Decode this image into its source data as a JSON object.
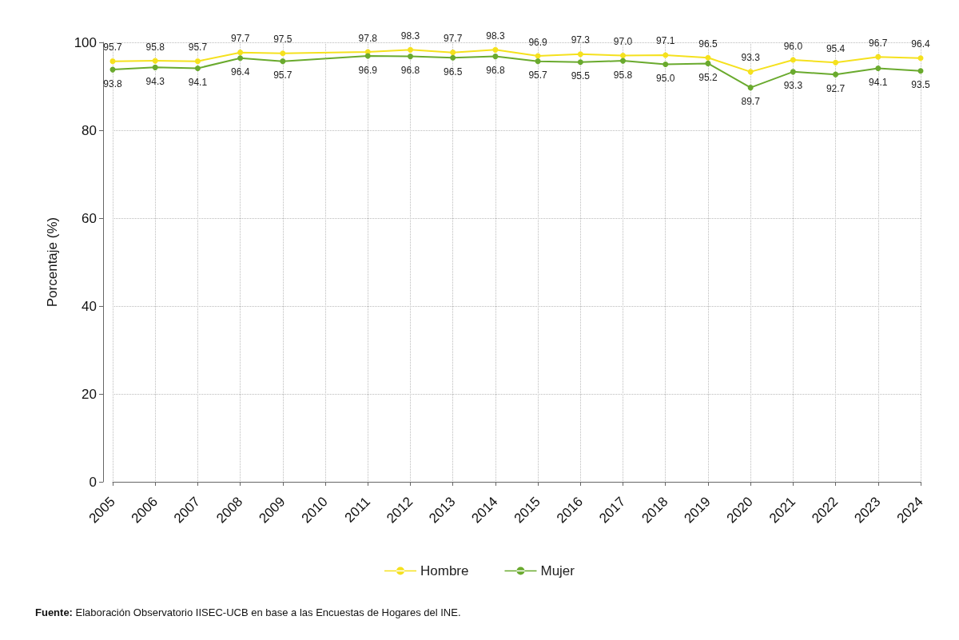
{
  "chart_data": {
    "type": "line",
    "ylabel": "Porcentaje (%)",
    "categories": [
      "2005",
      "2006",
      "2007",
      "2008",
      "2009",
      "2010",
      "2011",
      "2012",
      "2013",
      "2014",
      "2015",
      "2016",
      "2017",
      "2018",
      "2019",
      "2020",
      "2021",
      "2022",
      "2023",
      "2024"
    ],
    "series": [
      {
        "name": "Hombre",
        "color": "#f5e11e",
        "values": [
          95.7,
          95.8,
          95.7,
          97.7,
          97.5,
          null,
          97.8,
          98.3,
          97.7,
          98.3,
          96.9,
          97.3,
          97.0,
          97.1,
          96.5,
          93.3,
          96.0,
          95.4,
          96.7,
          96.4
        ],
        "value_labels": [
          "95.7",
          "95.8",
          "95.7",
          "97.7",
          "97.5",
          null,
          "97.8",
          "98.3",
          "97.7",
          "98.3",
          "96.9",
          "97.3",
          "97.0",
          "97.1",
          "96.5",
          "93.3",
          "96.0",
          "95.4",
          "96.7",
          "96.4"
        ]
      },
      {
        "name": "Mujer",
        "color": "#6aaa2e",
        "values": [
          93.8,
          94.3,
          94.1,
          96.4,
          95.7,
          null,
          96.9,
          96.8,
          96.5,
          96.8,
          95.7,
          95.5,
          95.8,
          95.0,
          95.2,
          89.7,
          93.3,
          92.7,
          94.1,
          93.5
        ],
        "value_labels": [
          "93.8",
          "94.3",
          "94.1",
          "96.4",
          "95.7",
          null,
          "96.9",
          "96.8",
          "96.5",
          "96.8",
          "95.7",
          "95.5",
          "95.8",
          "95.0",
          "95.2",
          "89.7",
          "93.3",
          "92.7",
          "94.1",
          "93.5"
        ]
      }
    ],
    "ylim": [
      0,
      100
    ],
    "yticks": [
      0,
      20,
      40,
      60,
      80,
      100
    ],
    "grid": true,
    "legend": "bottom",
    "marker": "circle",
    "line_style": "solid",
    "annotations": [
      "Fuente: Elaboración Observatorio IISEC-UCB en base a las Encuestas de Hogares del INE."
    ]
  }
}
